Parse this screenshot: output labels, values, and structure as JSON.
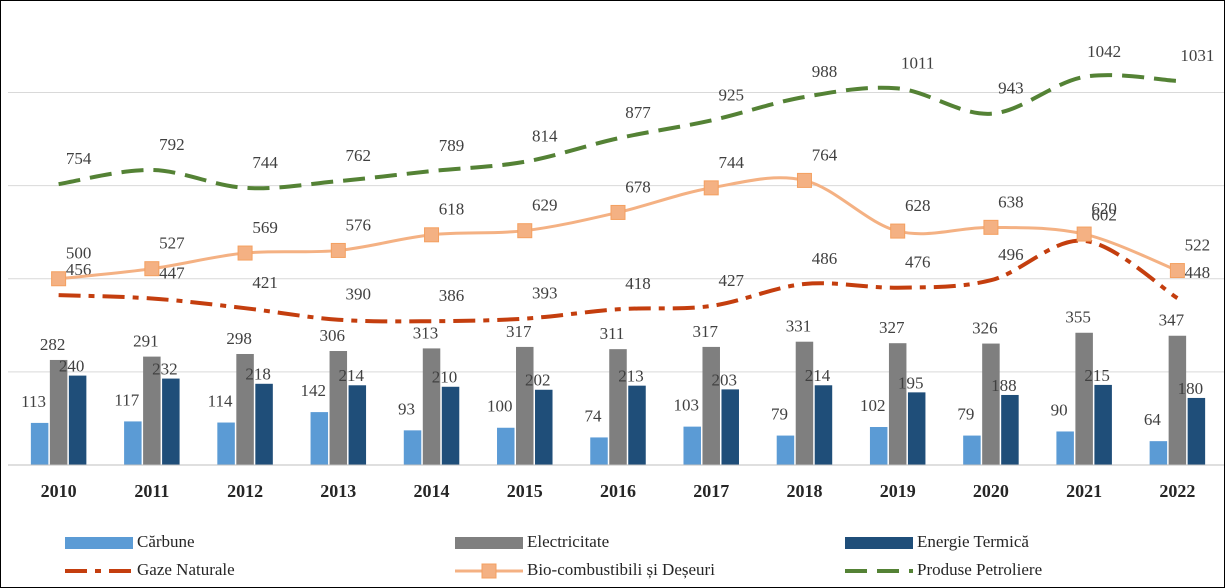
{
  "chart_data": {
    "type": "combo",
    "categories": [
      "2010",
      "2011",
      "2012",
      "2013",
      "2014",
      "2015",
      "2016",
      "2017",
      "2018",
      "2019",
      "2020",
      "2021",
      "2022"
    ],
    "ylim": [
      0,
      1200
    ],
    "yticks": [
      0,
      250,
      500,
      750,
      1000
    ],
    "grid": true,
    "legend": "bottom",
    "series": [
      {
        "name": "Cărbune",
        "type": "bar",
        "color": "#5b9bd5",
        "values": [
          113,
          117,
          114,
          142,
          93,
          100,
          74,
          103,
          79,
          102,
          79,
          90,
          64
        ]
      },
      {
        "name": "Electricitate",
        "type": "bar",
        "color": "#7f7f7f",
        "values": [
          282,
          291,
          298,
          306,
          313,
          317,
          311,
          317,
          331,
          327,
          326,
          355,
          347
        ]
      },
      {
        "name": "Energie Termică",
        "type": "bar",
        "color": "#1f4e79",
        "values": [
          240,
          232,
          218,
          214,
          210,
          202,
          213,
          203,
          214,
          195,
          188,
          215,
          180
        ]
      },
      {
        "name": "Gaze Naturale",
        "type": "line",
        "color": "#c43e0e",
        "dash": "dash-dot",
        "values": [
          456,
          447,
          421,
          390,
          386,
          393,
          418,
          427,
          486,
          476,
          496,
          602,
          448
        ]
      },
      {
        "name": "Bio-combustibili și Deșeuri",
        "type": "line",
        "color": "#f4b183",
        "marker": "square",
        "values": [
          500,
          527,
          569,
          576,
          618,
          629,
          678,
          744,
          764,
          628,
          638,
          620,
          522
        ]
      },
      {
        "name": "Produse Petroliere",
        "type": "line",
        "color": "#548235",
        "dash": "dash",
        "values": [
          754,
          792,
          744,
          762,
          789,
          814,
          877,
          925,
          988,
          1011,
          943,
          1042,
          1031
        ]
      }
    ]
  }
}
